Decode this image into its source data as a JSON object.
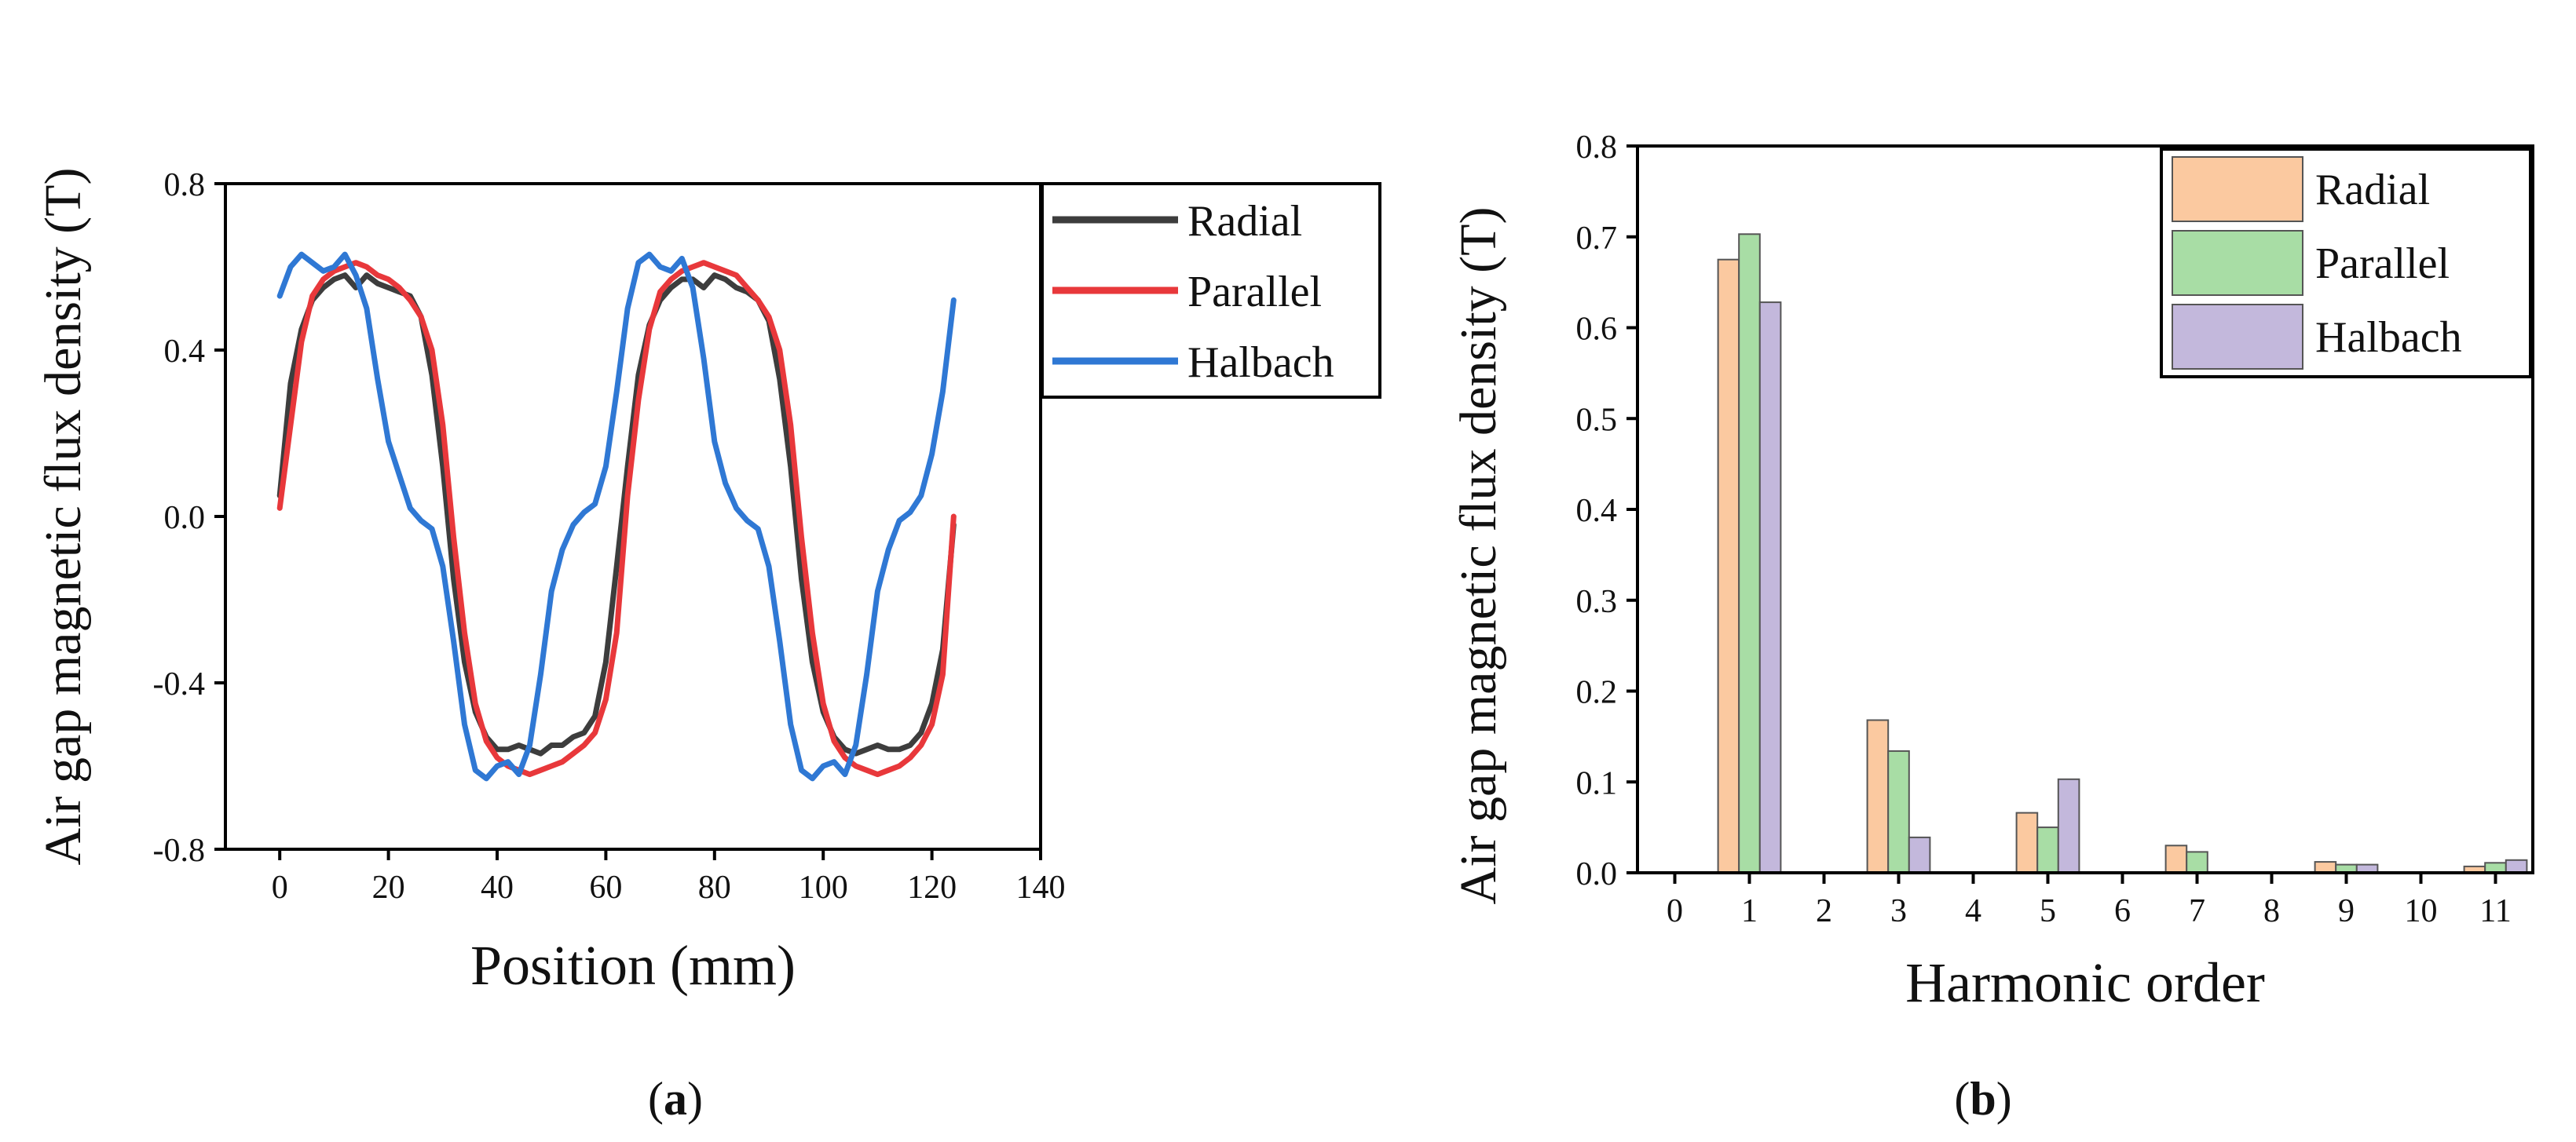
{
  "colors": {
    "radial_line": "#3d3d3d",
    "parallel_line": "#e8383b",
    "halbach_line": "#2f78d4",
    "radial_bar": "#fbc9a0",
    "parallel_bar": "#a8dda5",
    "halbach_bar": "#c3b8dc"
  },
  "captions": {
    "a_open": "(",
    "a_letter": "a",
    "a_close": ")",
    "b_open": "(",
    "b_letter": "b",
    "b_close": ")"
  },
  "chart_data": [
    {
      "type": "line",
      "xlabel": "Position (mm)",
      "ylabel": "Air gap magnetic flux density (T)",
      "xlim": [
        -10,
        140
      ],
      "ylim": [
        -0.8,
        0.8
      ],
      "xticks": [
        0,
        20,
        40,
        60,
        80,
        100,
        120,
        140
      ],
      "yticks": [
        -0.8,
        -0.4,
        0.0,
        0.4,
        0.8
      ],
      "ytick_labels": [
        "-0.8",
        "-0.4",
        "0.0",
        "0.4",
        "0.8"
      ],
      "legend_position": "right-outside-top",
      "x": [
        0,
        2,
        4,
        6,
        8,
        10,
        12,
        14,
        16,
        18,
        20,
        22,
        24,
        26,
        28,
        30,
        32,
        34,
        36,
        38,
        40,
        42,
        44,
        46,
        48,
        50,
        52,
        54,
        56,
        58,
        60,
        62,
        64,
        66,
        68,
        70,
        72,
        74,
        76,
        78,
        80,
        82,
        84,
        86,
        88,
        90,
        92,
        94,
        96,
        98,
        100,
        102,
        104,
        106,
        108,
        110,
        112,
        114,
        116,
        118,
        120,
        122,
        124
      ],
      "series": [
        {
          "name": "Radial",
          "values": [
            0.05,
            0.32,
            0.45,
            0.52,
            0.55,
            0.57,
            0.58,
            0.55,
            0.58,
            0.56,
            0.55,
            0.54,
            0.53,
            0.48,
            0.34,
            0.12,
            -0.15,
            -0.35,
            -0.47,
            -0.53,
            -0.56,
            -0.56,
            -0.55,
            -0.56,
            -0.57,
            -0.55,
            -0.55,
            -0.53,
            -0.52,
            -0.48,
            -0.35,
            -0.12,
            0.12,
            0.34,
            0.46,
            0.52,
            0.55,
            0.57,
            0.57,
            0.55,
            0.58,
            0.57,
            0.55,
            0.54,
            0.52,
            0.47,
            0.33,
            0.12,
            -0.15,
            -0.35,
            -0.47,
            -0.53,
            -0.56,
            -0.57,
            -0.56,
            -0.55,
            -0.56,
            -0.56,
            -0.55,
            -0.52,
            -0.45,
            -0.32,
            -0.02
          ]
        },
        {
          "name": "Parallel",
          "values": [
            0.02,
            0.22,
            0.42,
            0.53,
            0.57,
            0.59,
            0.6,
            0.61,
            0.6,
            0.58,
            0.57,
            0.55,
            0.52,
            0.48,
            0.4,
            0.22,
            -0.05,
            -0.28,
            -0.45,
            -0.54,
            -0.58,
            -0.6,
            -0.61,
            -0.62,
            -0.61,
            -0.6,
            -0.59,
            -0.57,
            -0.55,
            -0.52,
            -0.44,
            -0.28,
            0.05,
            0.28,
            0.45,
            0.54,
            0.57,
            0.59,
            0.6,
            0.61,
            0.6,
            0.59,
            0.58,
            0.55,
            0.52,
            0.48,
            0.4,
            0.22,
            -0.05,
            -0.28,
            -0.45,
            -0.54,
            -0.58,
            -0.6,
            -0.61,
            -0.62,
            -0.61,
            -0.6,
            -0.58,
            -0.55,
            -0.5,
            -0.38,
            0.0
          ]
        },
        {
          "name": "Halbach",
          "values": [
            0.53,
            0.6,
            0.63,
            0.61,
            0.59,
            0.6,
            0.63,
            0.58,
            0.5,
            0.33,
            0.18,
            0.1,
            0.02,
            -0.01,
            -0.03,
            -0.12,
            -0.3,
            -0.5,
            -0.61,
            -0.63,
            -0.6,
            -0.59,
            -0.62,
            -0.55,
            -0.38,
            -0.18,
            -0.08,
            -0.02,
            0.01,
            0.03,
            0.12,
            0.3,
            0.5,
            0.61,
            0.63,
            0.6,
            0.59,
            0.62,
            0.55,
            0.38,
            0.18,
            0.08,
            0.02,
            -0.01,
            -0.03,
            -0.12,
            -0.3,
            -0.5,
            -0.61,
            -0.63,
            -0.6,
            -0.59,
            -0.62,
            -0.55,
            -0.38,
            -0.18,
            -0.08,
            -0.01,
            0.01,
            0.05,
            0.15,
            0.3,
            0.52
          ]
        }
      ]
    },
    {
      "type": "bar",
      "xlabel": "Harmonic order",
      "ylabel": "Air gap magnetic flux density (T)",
      "xlim": [
        -0.5,
        11.5
      ],
      "ylim": [
        0,
        0.8
      ],
      "xticks": [
        0,
        1,
        2,
        3,
        4,
        5,
        6,
        7,
        8,
        9,
        10,
        11
      ],
      "yticks": [
        0.0,
        0.1,
        0.2,
        0.3,
        0.4,
        0.5,
        0.6,
        0.7,
        0.8
      ],
      "ytick_labels": [
        "0.0",
        "0.1",
        "0.2",
        "0.3",
        "0.4",
        "0.5",
        "0.6",
        "0.7",
        "0.8"
      ],
      "legend_position": "top-right",
      "categories": [
        1,
        3,
        5,
        7,
        9,
        11
      ],
      "series": [
        {
          "name": "Radial",
          "values": [
            0.675,
            0.168,
            0.066,
            0.03,
            0.012,
            0.007
          ]
        },
        {
          "name": "Parallel",
          "values": [
            0.703,
            0.134,
            0.05,
            0.023,
            0.009,
            0.011
          ]
        },
        {
          "name": "Halbach",
          "values": [
            0.628,
            0.039,
            0.103,
            0.0,
            0.009,
            0.014
          ]
        }
      ]
    }
  ]
}
